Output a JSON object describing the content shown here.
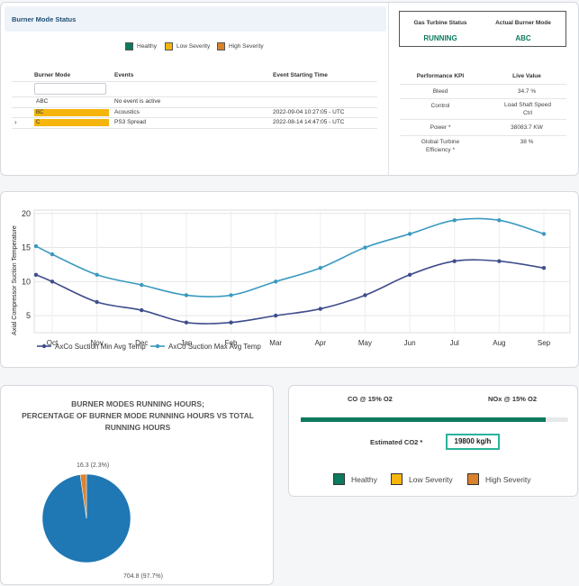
{
  "status_card": {
    "title": "Burner Mode Status",
    "legend": [
      {
        "label": "Healthy",
        "color": "#0c7a5e"
      },
      {
        "label": "Low Severity",
        "color": "#f5b50d"
      },
      {
        "label": "High Severity",
        "color": "#d9822b"
      }
    ],
    "table": {
      "columns": [
        "Burner Mode",
        "Events",
        "Event Starting Time"
      ],
      "rows": [
        {
          "mode": "ABC",
          "event": "No event is active",
          "time": "",
          "severity": "none"
        },
        {
          "mode": "BC",
          "event": "Acoustics",
          "time": "2022-09-04 10:27:05 - UTC",
          "severity": "low"
        },
        {
          "mode": "C",
          "event": "PS3 Spread",
          "time": "2022-08-14 14:47:05 - UTC",
          "severity": "low"
        }
      ],
      "expand_glyph": "›"
    },
    "turbine": {
      "status_label": "Gas Turbine Status",
      "status_value": "RUNNING",
      "mode_label": "Actual Burner Mode",
      "mode_value": "ABC"
    },
    "kpi": {
      "col_kpi": "Performance KPI",
      "col_value": "Live Value",
      "rows": [
        {
          "name": "Bleed",
          "value": "34.7 %"
        },
        {
          "name": "Control",
          "value": "Load Shaft Speed Ctrl"
        },
        {
          "name": "Power *",
          "value": "38083.7 KW"
        },
        {
          "name": "Global Turbine Efficiency *",
          "value": "38 %"
        }
      ]
    }
  },
  "line_chart": {
    "chart_data": {
      "type": "line",
      "categories": [
        "Oct",
        "Nov",
        "Dec",
        "Jan",
        "Feb",
        "Mar",
        "Apr",
        "May",
        "Jun",
        "Jul",
        "Aug",
        "Sep"
      ],
      "x_start_value": 14.8,
      "series": [
        {
          "name": "AxCo Suction Min Avg Temp",
          "color": "#3f4d8c",
          "start": 11,
          "values": [
            10,
            7,
            5.8,
            4,
            4,
            5,
            6,
            8,
            11,
            13,
            13,
            12
          ]
        },
        {
          "name": "AxCo Suction Max Avg Temp",
          "color": "#3a9ac0",
          "start": 15.2,
          "values": [
            14,
            11,
            9.5,
            8,
            8,
            10,
            12,
            15,
            17,
            19,
            19,
            17
          ]
        }
      ],
      "ylabel": "Axial Compressor Suction Temperature",
      "yticks": [
        5,
        10,
        15,
        20
      ],
      "ylim": [
        2.5,
        20.5
      ],
      "grid": true,
      "legend_position": "bottom-left"
    }
  },
  "pie_chart": {
    "title_line1": "BURNER MODES RUNNING HOURS;",
    "title_line2": "PERCENTAGE OF BURNER MODE RUNNING HOURS VS TOTAL",
    "title_line3": "RUNNING HOURS",
    "chart_data": {
      "type": "pie",
      "slices": [
        {
          "value": 704.8,
          "label": "704.8 (97.7%)",
          "color": "#1f77b4"
        },
        {
          "value": 16.3,
          "label": "16.3 (2.3%)",
          "color": "#e0832a"
        }
      ]
    }
  },
  "emissions": {
    "co_label": "CO @ 15% O2",
    "nox_label": "NOx @ 15% O2",
    "bar_fill_fraction": 0.92,
    "bar_color": "#0c7a5e",
    "co2_label": "Estimated CO2 *",
    "co2_value": "19800 kg/h",
    "legend": [
      {
        "label": "Healthy",
        "color": "#0c7a5e"
      },
      {
        "label": "Low Severity",
        "color": "#f5b50d"
      },
      {
        "label": "High Severity",
        "color": "#d9822b"
      }
    ]
  }
}
